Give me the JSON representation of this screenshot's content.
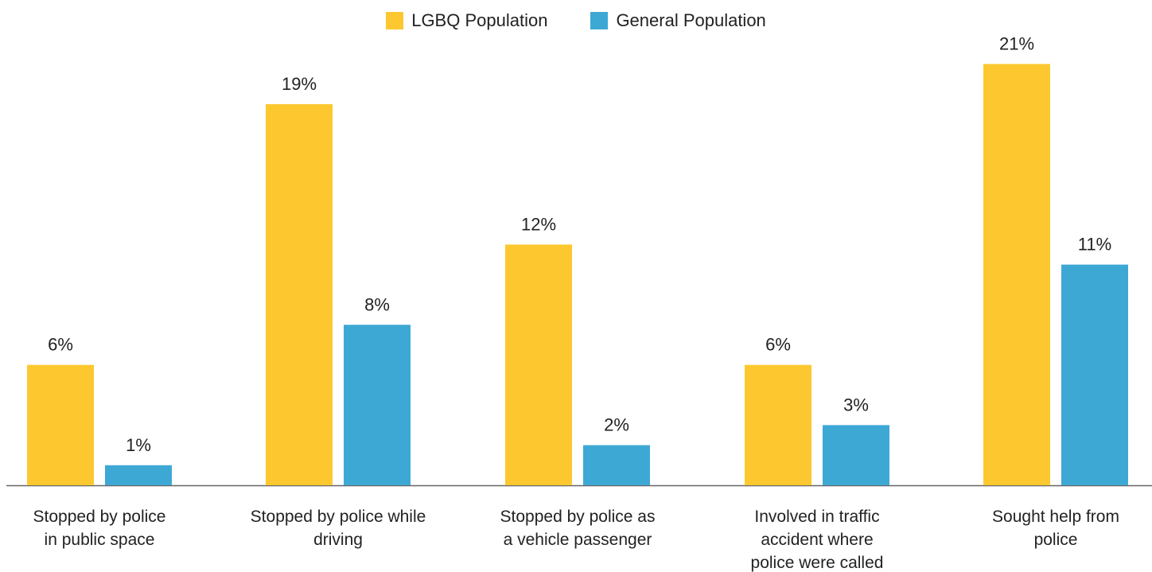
{
  "chart_data": {
    "type": "bar",
    "categories": [
      [
        "Stopped by police",
        "in public space"
      ],
      [
        "Stopped by police while",
        "driving"
      ],
      [
        "Stopped by police as",
        "a vehicle passenger"
      ],
      [
        "Involved in traffic",
        "accident where",
        "police were called"
      ],
      [
        "Sought help from",
        "police"
      ]
    ],
    "series": [
      {
        "name": "LGBQ Population",
        "values": [
          6,
          19,
          12,
          6,
          21
        ],
        "labels": [
          "6%",
          "19%",
          "12%",
          "6%",
          "21%"
        ],
        "color": "#FDC82F"
      },
      {
        "name": "General Population",
        "values": [
          1,
          8,
          2,
          3,
          11
        ],
        "labels": [
          "1%",
          "8%",
          "2%",
          "3%",
          "11%"
        ],
        "color": "#3EA8D5"
      }
    ],
    "ylim": [
      0,
      23
    ],
    "grid": false,
    "legend": "top-center",
    "axis_color": "#666666"
  }
}
